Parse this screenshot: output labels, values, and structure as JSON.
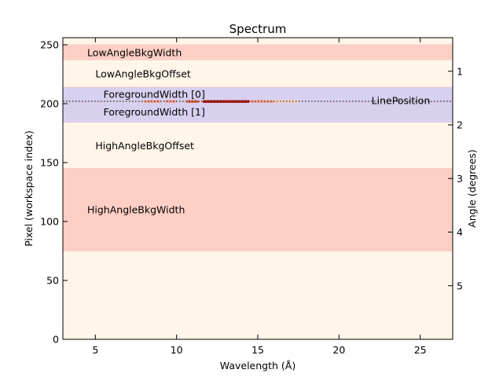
{
  "chart_data": {
    "type": "area",
    "title": "Spectrum",
    "xlabel": "Wavelength (Å)",
    "ylabel": "Pixel (workspace index)",
    "y2label": "Angle (degrees)",
    "xlim": [
      3.0,
      27.0
    ],
    "ylim": [
      0,
      256
    ],
    "x_ticks": [
      5,
      10,
      15,
      20,
      25
    ],
    "y_ticks": [
      0,
      50,
      100,
      150,
      200,
      250
    ],
    "y2_ticks": [
      {
        "label": "1",
        "pixel": 227.5
      },
      {
        "label": "2",
        "pixel": 182
      },
      {
        "label": "3",
        "pixel": 136.5
      },
      {
        "label": "4",
        "pixel": 91
      },
      {
        "label": "5",
        "pixel": 45.5
      }
    ],
    "grid": false,
    "background_color": "#fff5e8",
    "regions": [
      {
        "name": "LowAngleBkgWidth",
        "y0": 237,
        "y1": 250,
        "color": "#ffcfc6",
        "label_x": 4.5
      },
      {
        "name": "LowAngleBkgOffset",
        "y0": 214,
        "y1": 237,
        "color": "#fff5e8",
        "label_x": 5.0
      },
      {
        "name": "ForegroundWidth [0]",
        "y0": 202,
        "y1": 214,
        "color": "#d8d0ef",
        "label_x": 5.5
      },
      {
        "name": "ForegroundWidth [1]",
        "y0": 184,
        "y1": 202,
        "color": "#d8d0ef",
        "label_x": 5.5
      },
      {
        "name": "HighAngleBkgOffset",
        "y0": 145,
        "y1": 184,
        "color": "#fff5e8",
        "label_x": 5.0
      },
      {
        "name": "HighAngleBkgWidth",
        "y0": 75,
        "y1": 145,
        "color": "#ffcfc6",
        "label_x": 4.5
      }
    ],
    "line_position": {
      "name": "LinePosition",
      "y": 202,
      "label_x": 22.0
    },
    "signal": [
      {
        "x0": 8.0,
        "x1": 9.0,
        "color": "#f5a090"
      },
      {
        "x0": 9.3,
        "x1": 10.0,
        "color": "#f5a090"
      },
      {
        "x0": 10.6,
        "x1": 11.4,
        "color": "#e06a50"
      },
      {
        "x0": 11.6,
        "x1": 14.5,
        "color": "#b02010"
      },
      {
        "x0": 14.5,
        "x1": 16.0,
        "color": "#f5a090"
      },
      {
        "x0": 16.0,
        "x1": 17.5,
        "color": "#fbd0c0"
      }
    ]
  }
}
